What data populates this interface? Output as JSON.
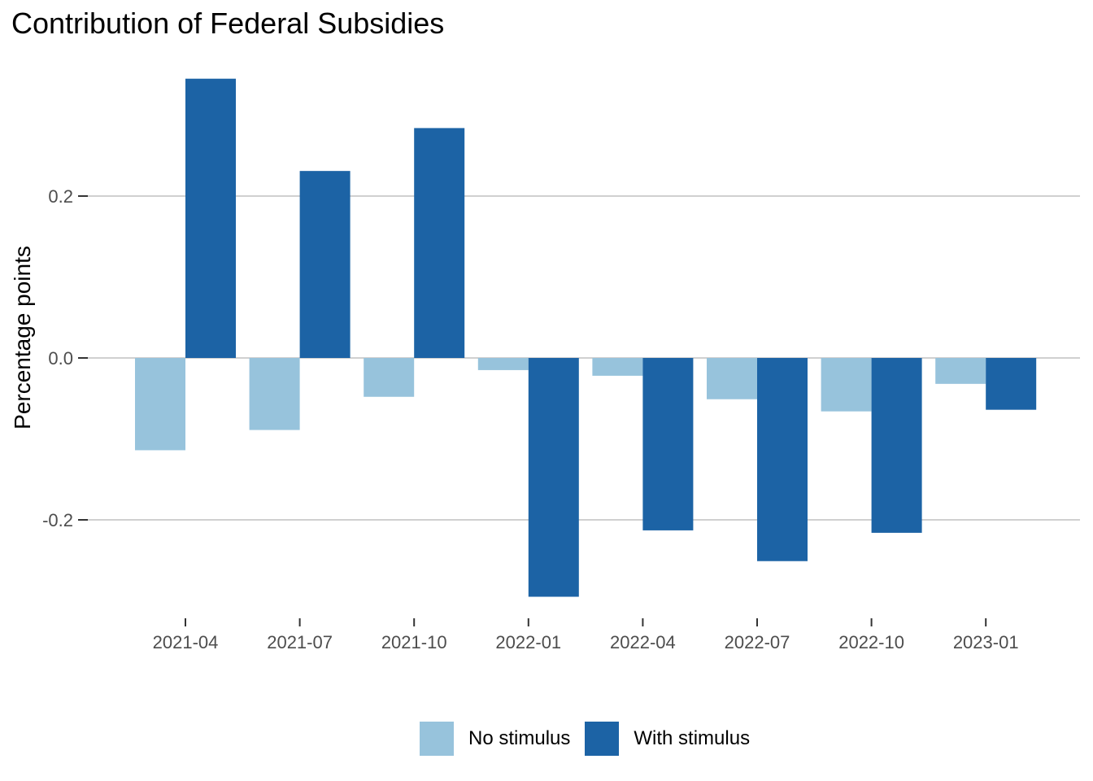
{
  "chart_data": {
    "type": "bar",
    "title": "Contribution of Federal Subsidies",
    "xlabel": "",
    "ylabel": "Percentage points",
    "categories": [
      "2021-04",
      "2021-07",
      "2021-10",
      "2022-01",
      "2022-04",
      "2022-07",
      "2022-10",
      "2023-01"
    ],
    "series": [
      {
        "name": "No stimulus",
        "color": "#97c3dc",
        "values": [
          -0.114,
          -0.089,
          -0.048,
          -0.015,
          -0.022,
          -0.051,
          -0.066,
          -0.032
        ]
      },
      {
        "name": "With stimulus",
        "color": "#1c63a5",
        "values": [
          0.345,
          0.231,
          0.284,
          -0.295,
          -0.213,
          -0.251,
          -0.216,
          -0.064
        ]
      }
    ],
    "ylim": [
      -0.32,
      0.37
    ],
    "yticks": [
      -0.2,
      0.0,
      0.2
    ],
    "ytick_labels": [
      "-0.2",
      "0.0",
      "0.2"
    ],
    "grid": true,
    "legend_position": "bottom"
  }
}
